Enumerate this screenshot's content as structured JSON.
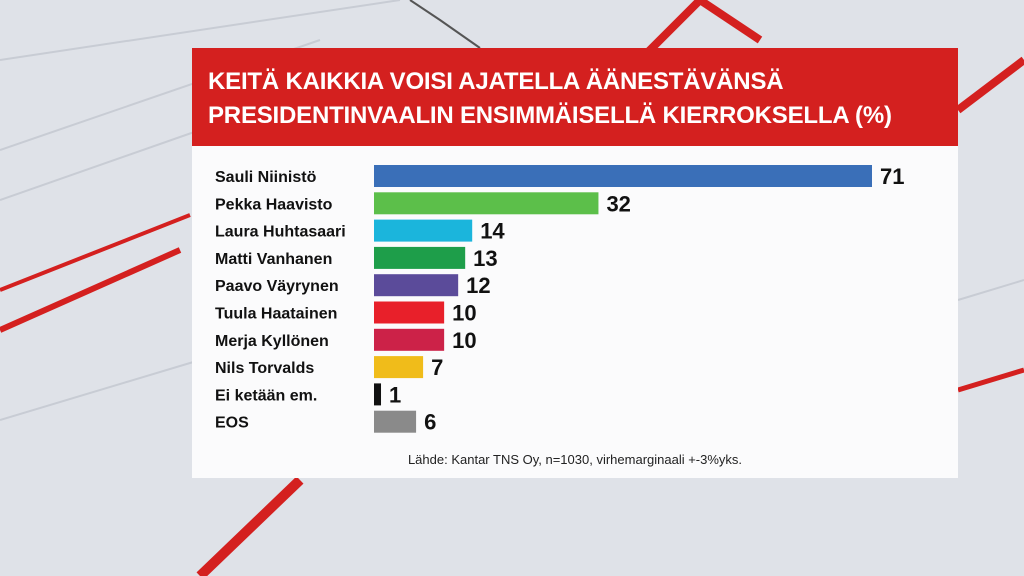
{
  "chart_data": {
    "type": "bar",
    "orientation": "horizontal",
    "title": "KEITÄ KAIKKIA VOISI AJATELLA ÄÄNESTÄVÄNSÄ PRESIDENTINVAALIN ENSIMMÄISELLÄ KIERROKSELLA (%)",
    "title_lines": [
      "KEITÄ KAIKKIA VOISI AJATELLA ÄÄNESTÄVÄNSÄ",
      "PRESIDENTINVAALIN ENSIMMÄISELLÄ KIERROKSELLA (%)"
    ],
    "categories": [
      "Sauli Niinistö",
      "Pekka Haavisto",
      "Laura Huhtasaari",
      "Matti Vanhanen",
      "Paavo Väyrynen",
      "Tuula Haatainen",
      "Merja Kyllönen",
      "Nils Torvalds",
      "Ei ketään em.",
      "EOS"
    ],
    "values": [
      71,
      32,
      14,
      13,
      12,
      10,
      10,
      7,
      1,
      6
    ],
    "colors": [
      "#3a6fb8",
      "#5cbf4a",
      "#1bb5dc",
      "#1e9e4a",
      "#5b4b9a",
      "#e8202a",
      "#cc2248",
      "#f0bc1a",
      "#111111",
      "#8a8a8a"
    ],
    "data_labels": [
      "71",
      "32",
      "14",
      "13",
      "12",
      "10",
      "10",
      "7",
      "1",
      "6"
    ],
    "xlim": [
      0,
      71
    ],
    "grid": false,
    "legend": "none",
    "source": "Lähde: Kantar TNS Oy, n=1030, virhemarginaali +-3%yks."
  },
  "theme": {
    "header_color": "#d4201f"
  }
}
